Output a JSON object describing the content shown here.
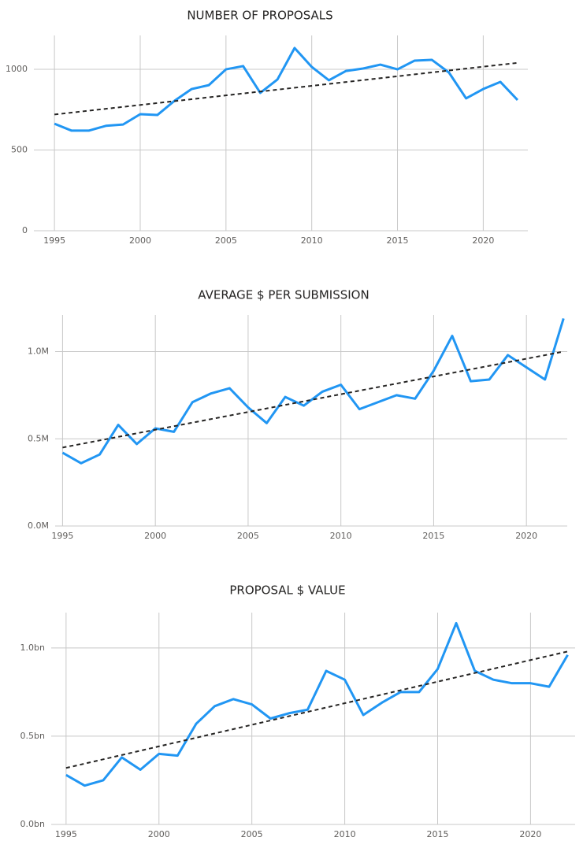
{
  "chart_data": [
    {
      "type": "line",
      "title": "NUMBER OF PROPOSALS",
      "x": [
        1995,
        1996,
        1997,
        1998,
        1999,
        2000,
        2001,
        2002,
        2003,
        2004,
        2005,
        2006,
        2007,
        2008,
        2009,
        2010,
        2011,
        2012,
        2013,
        2014,
        2015,
        2016,
        2017,
        2018,
        2019,
        2020,
        2021,
        2022
      ],
      "values": [
        663,
        620,
        620,
        650,
        658,
        722,
        717,
        805,
        878,
        902,
        1000,
        1020,
        854,
        937,
        1132,
        1015,
        932,
        990,
        1005,
        1029,
        1000,
        1054,
        1059,
        980,
        820,
        878,
        922,
        810
      ],
      "color": "#2196f3",
      "trend_x": [
        1995,
        2022
      ],
      "trend_values": [
        720,
        1040
      ],
      "xlim": [
        1993.8,
        2022.6
      ],
      "xticks": [
        1995,
        2000,
        2005,
        2010,
        2015,
        2020
      ],
      "ylim": [
        0,
        1210
      ],
      "yticks": [
        0,
        500,
        1000
      ],
      "grid": true
    },
    {
      "type": "line",
      "title": "AVERAGE $ PER SUBMISSION",
      "x": [
        1995,
        1996,
        1997,
        1998,
        1999,
        2000,
        2001,
        2002,
        2003,
        2004,
        2005,
        2006,
        2007,
        2008,
        2009,
        2010,
        2011,
        2012,
        2013,
        2014,
        2015,
        2016,
        2017,
        2018,
        2019,
        2020,
        2021,
        2022
      ],
      "values": [
        420000,
        360000,
        410000,
        580000,
        470000,
        560000,
        540000,
        710000,
        760000,
        790000,
        680000,
        590000,
        740000,
        690000,
        770000,
        810000,
        670000,
        710000,
        750000,
        730000,
        890000,
        1090000,
        830000,
        840000,
        980000,
        910000,
        840000,
        1190000
      ],
      "color": "#2196f3",
      "trend_x": [
        1995,
        2022
      ],
      "trend_values": [
        450000,
        1000000
      ],
      "xlim": [
        1994.6,
        2022.2
      ],
      "xticks": [
        1995,
        2000,
        2005,
        2010,
        2015,
        2020
      ],
      "ylim": [
        0,
        1210000
      ],
      "yticks": [
        {
          "value": 0,
          "label": "0.0M"
        },
        {
          "value": 500000,
          "label": "0.5M"
        },
        {
          "value": 1000000,
          "label": "1.0M"
        }
      ],
      "grid": true
    },
    {
      "type": "line",
      "title": "PROPOSAL $ VALUE",
      "x": [
        1995,
        1996,
        1997,
        1998,
        1999,
        2000,
        2001,
        2002,
        2003,
        2004,
        2005,
        2006,
        2007,
        2008,
        2009,
        2010,
        2011,
        2012,
        2013,
        2014,
        2015,
        2016,
        2017,
        2018,
        2019,
        2020,
        2021,
        2022
      ],
      "values": [
        280000000,
        220000000,
        250000000,
        380000000,
        310000000,
        400000000,
        390000000,
        570000000,
        670000000,
        710000000,
        680000000,
        600000000,
        630000000,
        650000000,
        870000000,
        820000000,
        620000000,
        690000000,
        750000000,
        750000000,
        880000000,
        1140000000,
        870000000,
        820000000,
        800000000,
        800000000,
        780000000,
        960000000
      ],
      "color": "#2196f3",
      "trend_x": [
        1995,
        2022
      ],
      "trend_values": [
        320000000,
        980000000
      ],
      "xlim": [
        1994.2,
        2022.4
      ],
      "xticks": [
        1995,
        2000,
        2005,
        2010,
        2015,
        2020
      ],
      "ylim": [
        0,
        1200000000
      ],
      "yticks": [
        {
          "value": 0,
          "label": "0.0bn"
        },
        {
          "value": 500000000,
          "label": "0.5bn"
        },
        {
          "value": 1000000000,
          "label": "1.0bn"
        }
      ],
      "grid": true
    }
  ]
}
